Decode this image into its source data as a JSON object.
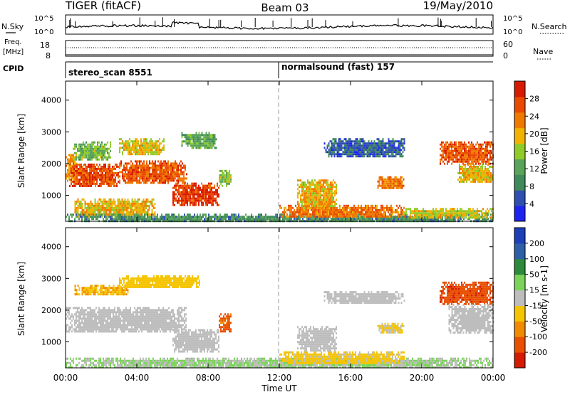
{
  "header": {
    "station": "TIGER (fitACF)",
    "beam": "Beam 03",
    "date": "19/May/2010"
  },
  "aux_panels": {
    "nsky_label": "N.Sky",
    "nsky_ticks": [
      "10^5",
      "10^0"
    ],
    "nsearch_label": "N.Search",
    "freq_label_line1": "Freq.",
    "freq_label_line2": "[MHz]",
    "freq_ticks": [
      "18",
      "8"
    ],
    "nave_ticks": [
      "60",
      "0"
    ],
    "nave_label": "Nave",
    "cpid_label": "CPID",
    "cpid_left": "stereo_scan 8551",
    "cpid_right": "normalsound (fast) 157"
  },
  "x_axis": {
    "label": "Time UT",
    "ticks": [
      "00:00",
      "04:00",
      "08:00",
      "12:00",
      "16:00",
      "20:00",
      "00:00"
    ]
  },
  "colors": {
    "power_scale": [
      "#1f23f0",
      "#2f4fb0",
      "#3f8a5a",
      "#5aa35a",
      "#8fcc2a",
      "#f2b300",
      "#f07a00",
      "#e84a00",
      "#d81a00"
    ],
    "velocity_scale": [
      "#1d3fb8",
      "#2e5fa8",
      "#2d8a3a",
      "#7bd35a",
      "#bdbdbd",
      "#f5c400",
      "#f08a00",
      "#e85000",
      "#d41a00"
    ]
  },
  "chart_data": [
    {
      "type": "heatmap",
      "title": "",
      "xlabel": "Time UT",
      "ylabel": "Slant Range [km]",
      "xlim": [
        0,
        24
      ],
      "ylim": [
        180,
        4600
      ],
      "yticks": [
        1000,
        2000,
        3000,
        4000
      ],
      "colorbar": {
        "label": "Power [dB]",
        "ticks": [
          4,
          8,
          12,
          16,
          20,
          24,
          28
        ],
        "range": [
          0,
          32
        ]
      },
      "regions": [
        {
          "t0": 0.0,
          "t1": 0.6,
          "r0": 1450,
          "r1": 2300,
          "v": 22
        },
        {
          "t0": 0.2,
          "t1": 3.0,
          "r0": 1300,
          "r1": 2000,
          "v": 27
        },
        {
          "t0": 3.0,
          "t1": 6.8,
          "r0": 1400,
          "r1": 2100,
          "v": 26
        },
        {
          "t0": 0.4,
          "t1": 2.5,
          "r0": 2100,
          "r1": 2700,
          "v": 14
        },
        {
          "t0": 3.0,
          "t1": 5.5,
          "r0": 2300,
          "r1": 2800,
          "v": 18
        },
        {
          "t0": 6.5,
          "t1": 8.5,
          "r0": 2500,
          "r1": 3000,
          "v": 12
        },
        {
          "t0": 6.0,
          "t1": 8.6,
          "r0": 700,
          "r1": 1400,
          "v": 28
        },
        {
          "t0": 8.6,
          "t1": 9.3,
          "r0": 1300,
          "r1": 1800,
          "v": 16
        },
        {
          "t0": 0.5,
          "t1": 5.0,
          "r0": 300,
          "r1": 900,
          "v": 20
        },
        {
          "t0": 0.0,
          "t1": 24.0,
          "r0": 180,
          "r1": 420,
          "v": 10
        },
        {
          "t0": 12.0,
          "t1": 19.0,
          "r0": 300,
          "r1": 700,
          "v": 24
        },
        {
          "t0": 19.0,
          "t1": 24.0,
          "r0": 300,
          "r1": 600,
          "v": 18
        },
        {
          "t0": 13.0,
          "t1": 15.2,
          "r0": 600,
          "r1": 1500,
          "v": 20
        },
        {
          "t0": 14.5,
          "t1": 19.0,
          "r0": 2200,
          "r1": 2800,
          "v": 6
        },
        {
          "t0": 17.5,
          "t1": 19.0,
          "r0": 1200,
          "r1": 1600,
          "v": 24
        },
        {
          "t0": 21.0,
          "t1": 24.0,
          "r0": 2000,
          "r1": 2700,
          "v": 26
        },
        {
          "t0": 22.0,
          "t1": 24.0,
          "r0": 1400,
          "r1": 2000,
          "v": 20
        }
      ]
    },
    {
      "type": "heatmap",
      "title": "",
      "xlabel": "Time UT",
      "ylabel": "Slant Range [km]",
      "xlim": [
        0,
        24
      ],
      "ylim": [
        180,
        4600
      ],
      "yticks": [
        1000,
        2000,
        3000,
        4000
      ],
      "colorbar": {
        "label": "Velocity [m s-1]",
        "ticks": [
          200,
          100,
          50,
          15,
          -15,
          -50,
          -100,
          -200
        ],
        "range": [
          -250,
          250
        ]
      },
      "regions": [
        {
          "t0": 0.0,
          "t1": 6.8,
          "r0": 1300,
          "r1": 2100,
          "v": 0
        },
        {
          "t0": 6.0,
          "t1": 8.6,
          "r0": 700,
          "r1": 1400,
          "v": 0
        },
        {
          "t0": 0.5,
          "t1": 3.5,
          "r0": 2500,
          "r1": 2800,
          "v": -80
        },
        {
          "t0": 3.0,
          "t1": 7.5,
          "r0": 2700,
          "r1": 3100,
          "v": -60
        },
        {
          "t0": 8.6,
          "t1": 9.3,
          "r0": 1300,
          "r1": 1900,
          "v": -150
        },
        {
          "t0": 0.0,
          "t1": 24.0,
          "r0": 180,
          "r1": 500,
          "v": 30
        },
        {
          "t0": 12.0,
          "t1": 19.0,
          "r0": 300,
          "r1": 700,
          "v": -40
        },
        {
          "t0": 13.0,
          "t1": 15.2,
          "r0": 700,
          "r1": 1500,
          "v": 0
        },
        {
          "t0": 14.5,
          "t1": 19.0,
          "r0": 2200,
          "r1": 2600,
          "v": 0
        },
        {
          "t0": 17.5,
          "t1": 19.0,
          "r0": 1300,
          "r1": 1600,
          "v": -30
        },
        {
          "t0": 21.0,
          "t1": 24.0,
          "r0": 2200,
          "r1": 2900,
          "v": -180
        },
        {
          "t0": 21.5,
          "t1": 24.0,
          "r0": 1300,
          "r1": 2200,
          "v": 0
        }
      ]
    }
  ]
}
